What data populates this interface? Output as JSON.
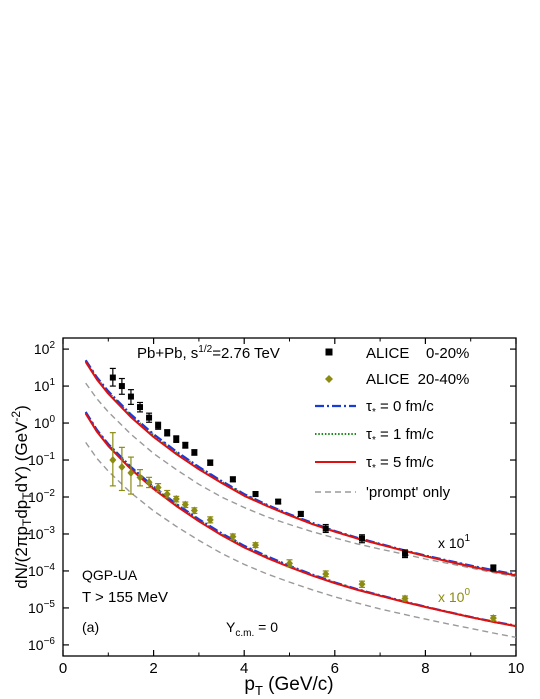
{
  "chart_data": {
    "type": "scatter",
    "title": "",
    "xlabel": "p",
    "xlabel_sub": "T",
    "xlabel_unit": " (GeV/c)",
    "ylabel": "dN/(2πp_T dp_T dY) (GeV^-2)",
    "xlim": [
      0,
      10
    ],
    "ylim_exponent": [
      -6.3,
      2.3
    ],
    "y_scale": "log",
    "grid": false,
    "x_ticks": [
      "0",
      "2",
      "4",
      "6",
      "8",
      "10"
    ],
    "y_tick_exponents": [
      -6,
      -5,
      -4,
      -3,
      -2,
      -1,
      0,
      1,
      2
    ],
    "legend_position": "top-right",
    "annotations": {
      "system": "Pb+Pb, s",
      "system_sup": "1/2",
      "system_energy": "=2.76 TeV",
      "model": "QGP-UA",
      "temperature": "T > 155 MeV",
      "panel": "(a)",
      "rapidity_base": "Y",
      "rapidity_sub": "c.m.",
      "rapidity_val": " = 0",
      "scale1_base": "x 10",
      "scale1_exp": "1",
      "scale2_base": "x 10",
      "scale2_exp": "0"
    },
    "legend": [
      {
        "label": "ALICE    0-20%",
        "style": "square",
        "color": "#000000"
      },
      {
        "label": "ALICE  20-40%",
        "style": "diamond",
        "color": "#8c8c14"
      },
      {
        "label_pre": "τ",
        "label_sub": "*",
        "label_post": " = 0 fm/c",
        "style": "dashdot",
        "color": "#1a3cd6"
      },
      {
        "label_pre": "τ",
        "label_sub": "*",
        "label_post": " = 1 fm/c",
        "style": "dotted",
        "color": "#1a8a1a"
      },
      {
        "label_pre": "τ",
        "label_sub": "*",
        "label_post": " = 5 fm/c",
        "style": "solid",
        "color": "#e01010"
      },
      {
        "label": "'prompt' only",
        "style": "dashed",
        "color": "#9a9a9a"
      }
    ],
    "series": [
      {
        "name": "ALICE 0-20%",
        "marker": "square",
        "color": "#000000",
        "points": [
          {
            "x": 1.1,
            "y": 17,
            "elo": 10,
            "ehi": 30
          },
          {
            "x": 1.3,
            "y": 10,
            "elo": 6,
            "ehi": 16
          },
          {
            "x": 1.5,
            "y": 5.2,
            "elo": 3.2,
            "ehi": 8
          },
          {
            "x": 1.7,
            "y": 2.7,
            "elo": 2.0,
            "ehi": 3.6
          },
          {
            "x": 1.9,
            "y": 1.4,
            "elo": 1.05,
            "ehi": 1.85
          },
          {
            "x": 2.1,
            "y": 0.85,
            "elo": 0.68,
            "ehi": 1.05
          },
          {
            "x": 2.3,
            "y": 0.55,
            "elo": 0.45,
            "ehi": 0.66
          },
          {
            "x": 2.5,
            "y": 0.37,
            "elo": 0.3,
            "ehi": 0.45
          },
          {
            "x": 2.7,
            "y": 0.25,
            "elo": 0.21,
            "ehi": 0.3
          },
          {
            "x": 2.9,
            "y": 0.16,
            "elo": 0.135,
            "ehi": 0.19
          },
          {
            "x": 3.25,
            "y": 0.085,
            "elo": 0.072,
            "ehi": 0.1
          },
          {
            "x": 3.75,
            "y": 0.03,
            "elo": 0.026,
            "ehi": 0.035
          },
          {
            "x": 4.25,
            "y": 0.012,
            "elo": 0.0105,
            "ehi": 0.014
          },
          {
            "x": 4.75,
            "y": 0.0075,
            "elo": 0.0066,
            "ehi": 0.0086
          },
          {
            "x": 5.25,
            "y": 0.0035,
            "elo": 0.003,
            "ehi": 0.004
          },
          {
            "x": 5.8,
            "y": 0.0014,
            "elo": 0.0011,
            "ehi": 0.0018
          },
          {
            "x": 6.6,
            "y": 0.00075,
            "elo": 0.00058,
            "ehi": 0.00095
          },
          {
            "x": 7.55,
            "y": 0.00029,
            "elo": 0.00023,
            "ehi": 0.00037
          },
          {
            "x": 9.5,
            "y": 0.00012,
            "elo": 0.0001,
            "ehi": 0.000145
          }
        ]
      },
      {
        "name": "ALICE 20-40%",
        "marker": "diamond",
        "color": "#8c8c14",
        "points": [
          {
            "x": 1.1,
            "y": 0.1,
            "elo": 0.02,
            "ehi": 0.55
          },
          {
            "x": 1.3,
            "y": 0.065,
            "elo": 0.015,
            "ehi": 0.22
          },
          {
            "x": 1.5,
            "y": 0.045,
            "elo": 0.012,
            "ehi": 0.12
          },
          {
            "x": 1.7,
            "y": 0.034,
            "elo": 0.02,
            "ehi": 0.055
          },
          {
            "x": 1.9,
            "y": 0.025,
            "elo": 0.018,
            "ehi": 0.034
          },
          {
            "x": 2.1,
            "y": 0.018,
            "elo": 0.014,
            "ehi": 0.023
          },
          {
            "x": 2.3,
            "y": 0.012,
            "elo": 0.0095,
            "ehi": 0.015
          },
          {
            "x": 2.5,
            "y": 0.0088,
            "elo": 0.0074,
            "ehi": 0.0104
          },
          {
            "x": 2.7,
            "y": 0.0062,
            "elo": 0.0052,
            "ehi": 0.0073
          },
          {
            "x": 2.9,
            "y": 0.0043,
            "elo": 0.0036,
            "ehi": 0.0051
          },
          {
            "x": 3.25,
            "y": 0.0024,
            "elo": 0.002,
            "ehi": 0.0029
          },
          {
            "x": 3.75,
            "y": 0.00085,
            "elo": 0.0007,
            "ehi": 0.001
          },
          {
            "x": 4.25,
            "y": 0.0005,
            "elo": 0.00043,
            "ehi": 0.00058
          },
          {
            "x": 5.0,
            "y": 0.00016,
            "elo": 0.00013,
            "ehi": 0.0002
          },
          {
            "x": 5.8,
            "y": 8.3e-05,
            "elo": 7e-05,
            "ehi": 0.0001
          },
          {
            "x": 6.6,
            "y": 4.4e-05,
            "elo": 3.6e-05,
            "ehi": 5.3e-05
          },
          {
            "x": 7.55,
            "y": 1.8e-05,
            "elo": 1.55e-05,
            "ehi": 2.1e-05
          },
          {
            "x": 9.5,
            "y": 5.3e-06,
            "elo": 4.5e-06,
            "ehi": 6.2e-06
          }
        ]
      }
    ],
    "curves": [
      {
        "name": "τ* = 0 fm/c (0-20%, x10^1)",
        "style": "dashdot",
        "color": "#1a3cd6",
        "x": [
          0.5,
          0.75,
          1,
          1.5,
          2,
          2.5,
          3,
          3.5,
          4,
          4.5,
          5,
          5.5,
          6,
          6.5,
          7,
          7.5,
          8,
          8.5,
          9,
          9.5,
          10
        ],
        "y": [
          50,
          17,
          7.2,
          1.7,
          0.5,
          0.17,
          0.065,
          0.027,
          0.012,
          0.0062,
          0.0034,
          0.002,
          0.0012,
          0.00079,
          0.00054,
          0.00037,
          0.00026,
          0.00019,
          0.00014,
          0.000105,
          8e-05
        ]
      },
      {
        "name": "τ* = 1 fm/c (0-20%, x10^1)",
        "style": "dotted",
        "color": "#1a8a1a",
        "x": [
          0.5,
          0.75,
          1,
          1.5,
          2,
          2.5,
          3,
          3.5,
          4,
          4.5,
          5,
          5.5,
          6,
          6.5,
          7,
          7.5,
          8,
          8.5,
          9,
          9.5,
          10
        ],
        "y": [
          48,
          16,
          6.8,
          1.6,
          0.47,
          0.16,
          0.062,
          0.026,
          0.0115,
          0.006,
          0.0033,
          0.0019,
          0.00118,
          0.00077,
          0.00053,
          0.00036,
          0.000255,
          0.000185,
          0.000135,
          0.0001,
          7.8e-05
        ]
      },
      {
        "name": "τ* = 5 fm/c (0-20%, x10^1)",
        "style": "solid",
        "color": "#e01010",
        "x": [
          0.5,
          0.75,
          1,
          1.5,
          2,
          2.5,
          3,
          3.5,
          4,
          4.5,
          5,
          5.5,
          6,
          6.5,
          7,
          7.5,
          8,
          8.5,
          9,
          9.5,
          10
        ],
        "y": [
          45,
          15,
          6.2,
          1.45,
          0.42,
          0.145,
          0.056,
          0.024,
          0.0108,
          0.0057,
          0.0032,
          0.00185,
          0.00115,
          0.00075,
          0.00052,
          0.00036,
          0.00025,
          0.00018,
          0.000132,
          9.8e-05,
          7.6e-05
        ]
      },
      {
        "name": "'prompt' only (0-20%, x10^1)",
        "style": "dashed",
        "color": "#9a9a9a",
        "x": [
          0.5,
          0.75,
          1,
          1.5,
          2,
          2.5,
          3,
          3.5,
          4,
          4.5,
          5,
          5.5,
          6,
          6.5,
          7,
          7.5,
          8,
          8.5,
          9,
          9.5,
          10
        ],
        "y": [
          12,
          4.5,
          2.0,
          0.5,
          0.15,
          0.055,
          0.022,
          0.01,
          0.0052,
          0.0029,
          0.0018,
          0.00115,
          0.00078,
          0.00054,
          0.00039,
          0.00029,
          0.00021,
          0.00016,
          0.00012,
          9e-05,
          7e-05
        ]
      },
      {
        "name": "τ* = 0 fm/c (20-40%, x10^0)",
        "style": "dashdot",
        "color": "#1a3cd6",
        "x": [
          0.5,
          0.75,
          1,
          1.5,
          2,
          2.5,
          3,
          3.5,
          4,
          4.5,
          5,
          5.5,
          6,
          6.5,
          7,
          7.5,
          8,
          8.5,
          9,
          9.5,
          10
        ],
        "y": [
          2.0,
          0.65,
          0.27,
          0.065,
          0.019,
          0.0065,
          0.0025,
          0.00105,
          0.00048,
          0.00025,
          0.000138,
          8e-05,
          4.9e-05,
          3.2e-05,
          2.2e-05,
          1.52e-05,
          1.08e-05,
          7.8e-06,
          5.7e-06,
          4.3e-06,
          3.3e-06
        ]
      },
      {
        "name": "τ* = 1 fm/c (20-40%, x10^0)",
        "style": "dotted",
        "color": "#1a8a1a",
        "x": [
          0.5,
          0.75,
          1,
          1.5,
          2,
          2.5,
          3,
          3.5,
          4,
          4.5,
          5,
          5.5,
          6,
          6.5,
          7,
          7.5,
          8,
          8.5,
          9,
          9.5,
          10
        ],
        "y": [
          1.9,
          0.62,
          0.26,
          0.062,
          0.018,
          0.0062,
          0.0024,
          0.001,
          0.00046,
          0.00024,
          0.000134,
          7.8e-05,
          4.8e-05,
          3.15e-05,
          2.17e-05,
          1.5e-05,
          1.07e-05,
          7.7e-06,
          5.6e-06,
          4.2e-06,
          3.2e-06
        ]
      },
      {
        "name": "τ* = 5 fm/c (20-40%, x10^0)",
        "style": "solid",
        "color": "#e01010",
        "x": [
          0.5,
          0.75,
          1,
          1.5,
          2,
          2.5,
          3,
          3.5,
          4,
          4.5,
          5,
          5.5,
          6,
          6.5,
          7,
          7.5,
          8,
          8.5,
          9,
          9.5,
          10
        ],
        "y": [
          1.8,
          0.58,
          0.24,
          0.057,
          0.0165,
          0.0057,
          0.0022,
          0.00093,
          0.00043,
          0.000225,
          0.000127,
          7.5e-05,
          4.65e-05,
          3.07e-05,
          2.13e-05,
          1.48e-05,
          1.06e-05,
          7.7e-06,
          5.6e-06,
          4.2e-06,
          3.2e-06
        ]
      },
      {
        "name": "'prompt' only (20-40%, x10^0)",
        "style": "dashed",
        "color": "#9a9a9a",
        "x": [
          0.5,
          0.75,
          1,
          1.5,
          2,
          2.5,
          3,
          3.5,
          4,
          4.5,
          5,
          5.5,
          6,
          6.5,
          7,
          7.5,
          8,
          8.5,
          9,
          9.5,
          10
        ],
        "y": [
          0.3,
          0.11,
          0.05,
          0.013,
          0.0042,
          0.0016,
          0.00067,
          0.0003,
          0.00015,
          8.3e-05,
          5e-05,
          3.1e-05,
          2e-05,
          1.35e-05,
          9.4e-06,
          6.8e-06,
          5e-06,
          3.7e-06,
          2.8e-06,
          2.1e-06,
          1.6e-06
        ]
      }
    ]
  }
}
